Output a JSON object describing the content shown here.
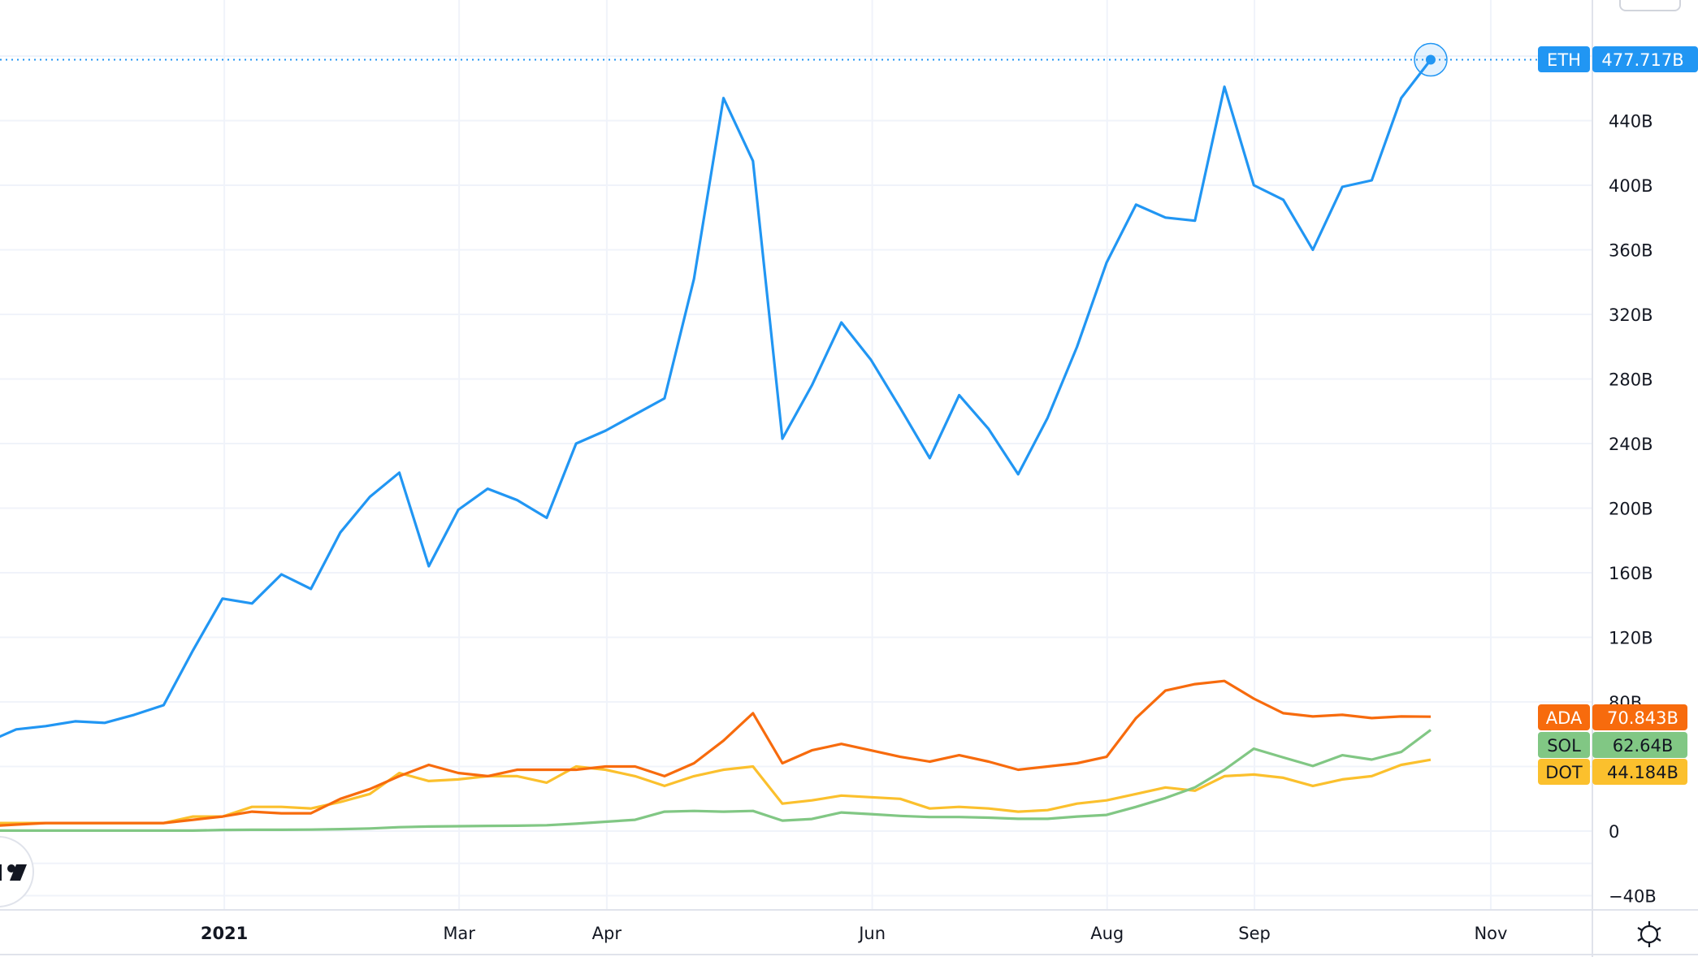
{
  "chart_data": {
    "type": "line",
    "title": "",
    "xlabel": "",
    "ylabel": "",
    "x_unit": "week index (weekly points)",
    "x": [
      -1,
      0,
      1,
      2,
      3,
      4,
      5,
      6,
      7,
      8,
      9,
      10,
      11,
      12,
      13,
      14,
      15,
      16,
      17,
      18,
      19,
      20,
      21,
      22,
      23,
      24,
      25,
      26,
      27,
      28,
      29,
      30,
      31,
      32,
      33,
      34,
      35,
      36,
      37,
      38,
      39,
      40,
      41,
      42,
      43,
      44,
      45,
      46,
      47,
      48
    ],
    "x_ticks": [
      {
        "label": "2021",
        "at": 7.06,
        "bold": true
      },
      {
        "label": "Mar",
        "at": 15.03
      },
      {
        "label": "Apr",
        "at": 20.04
      },
      {
        "label": "Jun",
        "at": 29.05
      },
      {
        "label": "Aug",
        "at": 37.02
      },
      {
        "label": "Sep",
        "at": 42.02
      },
      {
        "label": "Nov",
        "at": 50.04
      }
    ],
    "y_ticks": [
      {
        "v": -40,
        "label": "−40B"
      },
      {
        "v": 0,
        "label": "0"
      },
      {
        "v": 80,
        "label": "80B"
      },
      {
        "v": 120,
        "label": "120B"
      },
      {
        "v": 160,
        "label": "160B"
      },
      {
        "v": 200,
        "label": "200B"
      },
      {
        "v": 240,
        "label": "240B"
      },
      {
        "v": 280,
        "label": "280B"
      },
      {
        "v": 320,
        "label": "320B"
      },
      {
        "v": 360,
        "label": "360B"
      },
      {
        "v": 400,
        "label": "400B"
      },
      {
        "v": 440,
        "label": "440B"
      }
    ],
    "ylim": [
      -40,
      480
    ],
    "grid": true,
    "series": [
      {
        "name": "ETH",
        "color": "#2196f3",
        "text_color": "#ffffff",
        "last_label": "477.717B",
        "values": [
          55,
          63,
          65,
          68,
          67,
          72,
          78,
          112,
          144,
          141,
          159,
          150,
          185,
          207,
          222,
          164,
          199,
          212,
          205,
          194,
          240,
          248,
          258,
          268,
          342,
          454,
          415,
          243,
          276,
          315,
          292,
          262,
          231,
          270,
          249,
          221,
          256,
          300,
          352,
          388,
          380,
          378,
          461,
          400,
          391,
          360,
          399,
          403,
          454,
          477.717
        ]
      },
      {
        "name": "ADA",
        "color": "#f76b0d",
        "text_color": "#ffffff",
        "last_label": "70.843B",
        "values": [
          3,
          4,
          5,
          5,
          5,
          5,
          5,
          7,
          9,
          12,
          11,
          11,
          20,
          26,
          34,
          41,
          36,
          34,
          38,
          38,
          38,
          40,
          40,
          34,
          42,
          56,
          73,
          42,
          50,
          54,
          50,
          46,
          43,
          47,
          43,
          38,
          40,
          42,
          46,
          70,
          87,
          91,
          93,
          82,
          73,
          71,
          72,
          70,
          71,
          70.843
        ]
      },
      {
        "name": "SOL",
        "color": "#81c784",
        "text_color": "#131722",
        "last_label": "62.64B",
        "values": [
          0.3,
          0.3,
          0.3,
          0.3,
          0.3,
          0.3,
          0.3,
          0.3,
          0.7,
          0.8,
          0.8,
          0.9,
          1.2,
          1.6,
          2.4,
          2.8,
          3,
          3.2,
          3.3,
          3.6,
          4.6,
          5.8,
          7,
          12,
          12.5,
          12,
          12.5,
          6.5,
          7.5,
          11.5,
          10.5,
          9.4,
          8.7,
          8.7,
          8.3,
          7.6,
          7.6,
          9,
          10,
          15,
          20.5,
          27,
          38,
          51,
          45.6,
          40.3,
          47,
          44.3,
          49,
          62.64
        ]
      },
      {
        "name": "DOT",
        "color": "#fbc02d",
        "text_color": "#131722",
        "last_label": "44.184B",
        "values": [
          5,
          5,
          5,
          5,
          5,
          5,
          5,
          9,
          9,
          15,
          15,
          14,
          18,
          23,
          36,
          31,
          32,
          34,
          34,
          30,
          40,
          38,
          34,
          28,
          34,
          38,
          40,
          17,
          19,
          22,
          21,
          20,
          14,
          15,
          14,
          12,
          13,
          17,
          19,
          23,
          27,
          25,
          34,
          35,
          33,
          28,
          32,
          34,
          41,
          44.184
        ]
      }
    ],
    "crosshair_series": "ETH",
    "logo_text": "TV"
  },
  "icons": {
    "settings": "gear-icon"
  }
}
